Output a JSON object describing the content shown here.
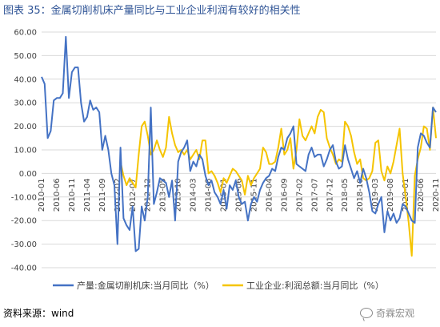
{
  "header": {
    "title": "图表 35：金属切削机床产量同比与工业企业利润有较好的相关性"
  },
  "footer": {
    "source": "资料来源：wind",
    "watermark": "奇霖宏观"
  },
  "colors": {
    "series1": "#4472c4",
    "series2": "#f5c400",
    "grid": "#d9d9d9",
    "title": "#2f5496"
  },
  "chart_data": {
    "type": "line",
    "title": "",
    "xlabel": "",
    "ylabel": "",
    "ylim": [
      -40,
      60
    ],
    "yticks": [
      "60.00",
      "50.00",
      "40.00",
      "30.00",
      "20.00",
      "10.00",
      "0.00",
      "-10.00",
      "-20.00",
      "-30.00",
      "-40.00"
    ],
    "xticks": [
      "2010-01",
      "2010-06",
      "2010-11",
      "2011-04",
      "2011-09",
      "2012-02",
      "2012-07",
      "2012-12",
      "2013-05",
      "2013-10",
      "2014-03",
      "2014-08",
      "2015-01",
      "2015-06",
      "2015-11",
      "2016-04",
      "2016-09",
      "2017-02",
      "2017-07",
      "2017-12",
      "2018-05",
      "2018-10",
      "2019-03",
      "2019-08",
      "2020-01",
      "2020-06",
      "2020-11"
    ],
    "x_start": "2010-01",
    "x_end": "2020-11",
    "grid": true,
    "legend_position": "bottom",
    "series": [
      {
        "name": "产量:金属切削机床:当月同比（%）",
        "points": [
          [
            "2010-01",
            41
          ],
          [
            "2010-02",
            38
          ],
          [
            "2010-03",
            15
          ],
          [
            "2010-04",
            18
          ],
          [
            "2010-05",
            31
          ],
          [
            "2010-06",
            32
          ],
          [
            "2010-07",
            32
          ],
          [
            "2010-08",
            34
          ],
          [
            "2010-09",
            58
          ],
          [
            "2010-10",
            32
          ],
          [
            "2010-11",
            43
          ],
          [
            "2010-12",
            45
          ],
          [
            "2011-01",
            45
          ],
          [
            "2011-02",
            30
          ],
          [
            "2011-03",
            22
          ],
          [
            "2011-04",
            24
          ],
          [
            "2011-05",
            31
          ],
          [
            "2011-06",
            27
          ],
          [
            "2011-07",
            28
          ],
          [
            "2011-08",
            26
          ],
          [
            "2011-09",
            10
          ],
          [
            "2011-10",
            16
          ],
          [
            "2011-11",
            10
          ],
          [
            "2011-12",
            0
          ],
          [
            "2012-01",
            -5
          ],
          [
            "2012-02",
            -30
          ],
          [
            "2012-03",
            11
          ],
          [
            "2012-04",
            -19
          ],
          [
            "2012-05",
            -22
          ],
          [
            "2012-06",
            -24
          ],
          [
            "2012-07",
            -14
          ],
          [
            "2012-08",
            -33
          ],
          [
            "2012-09",
            -32
          ],
          [
            "2012-10",
            -14
          ],
          [
            "2012-11",
            -20
          ],
          [
            "2012-12",
            -10
          ],
          [
            "2013-01",
            28
          ],
          [
            "2013-02",
            -13
          ],
          [
            "2013-03",
            -8
          ],
          [
            "2013-04",
            -2
          ],
          [
            "2013-05",
            -3
          ],
          [
            "2013-06",
            -4
          ],
          [
            "2013-07",
            -10
          ],
          [
            "2013-08",
            -3
          ],
          [
            "2013-09",
            -20
          ],
          [
            "2013-10",
            5
          ],
          [
            "2013-11",
            9
          ],
          [
            "2013-12",
            11
          ],
          [
            "2014-01",
            14
          ],
          [
            "2014-02",
            1
          ],
          [
            "2014-03",
            5
          ],
          [
            "2014-04",
            3
          ],
          [
            "2014-05",
            8
          ],
          [
            "2014-06",
            6
          ],
          [
            "2014-07",
            -1
          ],
          [
            "2014-08",
            -5
          ],
          [
            "2014-09",
            -3
          ],
          [
            "2014-10",
            -8
          ],
          [
            "2014-11",
            -10
          ],
          [
            "2014-12",
            -13
          ],
          [
            "2015-01",
            -7
          ],
          [
            "2015-02",
            -15
          ],
          [
            "2015-03",
            -5
          ],
          [
            "2015-04",
            -7
          ],
          [
            "2015-05",
            -3
          ],
          [
            "2015-06",
            -10
          ],
          [
            "2015-07",
            -13
          ],
          [
            "2015-08",
            -12
          ],
          [
            "2015-09",
            -20
          ],
          [
            "2015-10",
            -13
          ],
          [
            "2015-11",
            -10
          ],
          [
            "2015-12",
            -12
          ],
          [
            "2016-01",
            -7
          ],
          [
            "2016-02",
            -4
          ],
          [
            "2016-03",
            -2
          ],
          [
            "2016-04",
            -1
          ],
          [
            "2016-05",
            2
          ],
          [
            "2016-06",
            1
          ],
          [
            "2016-07",
            7
          ],
          [
            "2016-08",
            11
          ],
          [
            "2016-09",
            10
          ],
          [
            "2016-10",
            15
          ],
          [
            "2016-11",
            17
          ],
          [
            "2016-12",
            20
          ],
          [
            "2017-01",
            4
          ],
          [
            "2017-02",
            3
          ],
          [
            "2017-03",
            2
          ],
          [
            "2017-04",
            1
          ],
          [
            "2017-05",
            8
          ],
          [
            "2017-06",
            11
          ],
          [
            "2017-07",
            7
          ],
          [
            "2017-08",
            8
          ],
          [
            "2017-09",
            8
          ],
          [
            "2017-10",
            3
          ],
          [
            "2017-11",
            6
          ],
          [
            "2017-12",
            10
          ],
          [
            "2018-01",
            12
          ],
          [
            "2018-02",
            5
          ],
          [
            "2018-03",
            2
          ],
          [
            "2018-04",
            3
          ],
          [
            "2018-05",
            12
          ],
          [
            "2018-06",
            6
          ],
          [
            "2018-07",
            2
          ],
          [
            "2018-08",
            -2
          ],
          [
            "2018-09",
            1
          ],
          [
            "2018-10",
            -4
          ],
          [
            "2018-11",
            2
          ],
          [
            "2018-12",
            -2
          ],
          [
            "2019-01",
            -8
          ],
          [
            "2019-02",
            -16
          ],
          [
            "2019-03",
            -17
          ],
          [
            "2019-04",
            -13
          ],
          [
            "2019-05",
            -10
          ],
          [
            "2019-06",
            -25
          ],
          [
            "2019-07",
            -16
          ],
          [
            "2019-08",
            -20
          ],
          [
            "2019-09",
            -17
          ],
          [
            "2019-10",
            -21
          ],
          [
            "2019-11",
            -19
          ],
          [
            "2019-12",
            -13
          ],
          [
            "2020-01",
            -14
          ],
          [
            "2020-02",
            -17
          ],
          [
            "2020-03",
            -20
          ],
          [
            "2020-04",
            -21
          ],
          [
            "2020-05",
            11
          ],
          [
            "2020-06",
            17
          ],
          [
            "2020-07",
            16
          ],
          [
            "2020-08",
            13
          ],
          [
            "2020-09",
            11
          ],
          [
            "2020-10",
            28
          ],
          [
            "2020-11",
            26
          ]
        ]
      },
      {
        "name": "工业企业:利润总额:当月同比（%）",
        "points": [
          [
            "2012-03",
            5
          ],
          [
            "2012-04",
            -1
          ],
          [
            "2012-05",
            -5
          ],
          [
            "2012-06",
            -2
          ],
          [
            "2012-07",
            -4
          ],
          [
            "2012-08",
            -6
          ],
          [
            "2012-09",
            8
          ],
          [
            "2012-10",
            20
          ],
          [
            "2012-11",
            22
          ],
          [
            "2012-12",
            16
          ],
          [
            "2013-01",
            8
          ],
          [
            "2013-02",
            10
          ],
          [
            "2013-03",
            14
          ],
          [
            "2013-04",
            10
          ],
          [
            "2013-05",
            7
          ],
          [
            "2013-06",
            11
          ],
          [
            "2013-07",
            24
          ],
          [
            "2013-08",
            17
          ],
          [
            "2013-09",
            12
          ],
          [
            "2013-10",
            9
          ],
          [
            "2013-11",
            10
          ],
          [
            "2013-12",
            8
          ],
          [
            "2014-01",
            10
          ],
          [
            "2014-02",
            6
          ],
          [
            "2014-03",
            8
          ],
          [
            "2014-04",
            10
          ],
          [
            "2014-05",
            6
          ],
          [
            "2014-06",
            14
          ],
          [
            "2014-07",
            14
          ],
          [
            "2014-08",
            0
          ],
          [
            "2014-09",
            1
          ],
          [
            "2014-10",
            -1
          ],
          [
            "2014-11",
            -4
          ],
          [
            "2014-12",
            -8
          ],
          [
            "2015-01",
            -2
          ],
          [
            "2015-02",
            -4
          ],
          [
            "2015-03",
            -1
          ],
          [
            "2015-04",
            2
          ],
          [
            "2015-05",
            1
          ],
          [
            "2015-06",
            -1
          ],
          [
            "2015-07",
            -3
          ],
          [
            "2015-08",
            -9
          ],
          [
            "2015-09",
            -1
          ],
          [
            "2015-10",
            -5
          ],
          [
            "2015-11",
            -2
          ],
          [
            "2015-12",
            0
          ],
          [
            "2016-01",
            2
          ],
          [
            "2016-02",
            11
          ],
          [
            "2016-03",
            9
          ],
          [
            "2016-04",
            4
          ],
          [
            "2016-05",
            4
          ],
          [
            "2016-06",
            5
          ],
          [
            "2016-07",
            11
          ],
          [
            "2016-08",
            19
          ],
          [
            "2016-09",
            8
          ],
          [
            "2016-10",
            10
          ],
          [
            "2016-11",
            15
          ],
          [
            "2016-12",
            2
          ],
          [
            "2017-01",
            10
          ],
          [
            "2017-02",
            23
          ],
          [
            "2017-03",
            16
          ],
          [
            "2017-04",
            14
          ],
          [
            "2017-05",
            17
          ],
          [
            "2017-06",
            20
          ],
          [
            "2017-07",
            17
          ],
          [
            "2017-08",
            24
          ],
          [
            "2017-09",
            27
          ],
          [
            "2017-10",
            26
          ],
          [
            "2017-11",
            15
          ],
          [
            "2017-12",
            11
          ],
          [
            "2018-01",
            8
          ],
          [
            "2018-02",
            4
          ],
          [
            "2018-03",
            6
          ],
          [
            "2018-04",
            5
          ],
          [
            "2018-05",
            22
          ],
          [
            "2018-06",
            20
          ],
          [
            "2018-07",
            16
          ],
          [
            "2018-08",
            9
          ],
          [
            "2018-09",
            4
          ],
          [
            "2018-10",
            6
          ],
          [
            "2018-11",
            -2
          ],
          [
            "2018-12",
            -3
          ],
          [
            "2019-01",
            -2
          ],
          [
            "2019-02",
            1
          ],
          [
            "2019-03",
            13
          ],
          [
            "2019-04",
            14
          ],
          [
            "2019-05",
            1
          ],
          [
            "2019-06",
            -3
          ],
          [
            "2019-07",
            3
          ],
          [
            "2019-08",
            0
          ],
          [
            "2019-09",
            5
          ],
          [
            "2019-10",
            12
          ],
          [
            "2019-11",
            19
          ],
          [
            "2019-12",
            0
          ],
          [
            "2020-01",
            -10
          ],
          [
            "2020-02",
            -21
          ],
          [
            "2020-03",
            -35
          ],
          [
            "2020-04",
            -1
          ],
          [
            "2020-05",
            6
          ],
          [
            "2020-06",
            11
          ],
          [
            "2020-07",
            20
          ],
          [
            "2020-08",
            19
          ],
          [
            "2020-09",
            10
          ],
          [
            "2020-10",
            28
          ],
          [
            "2020-11",
            15
          ]
        ]
      }
    ]
  }
}
